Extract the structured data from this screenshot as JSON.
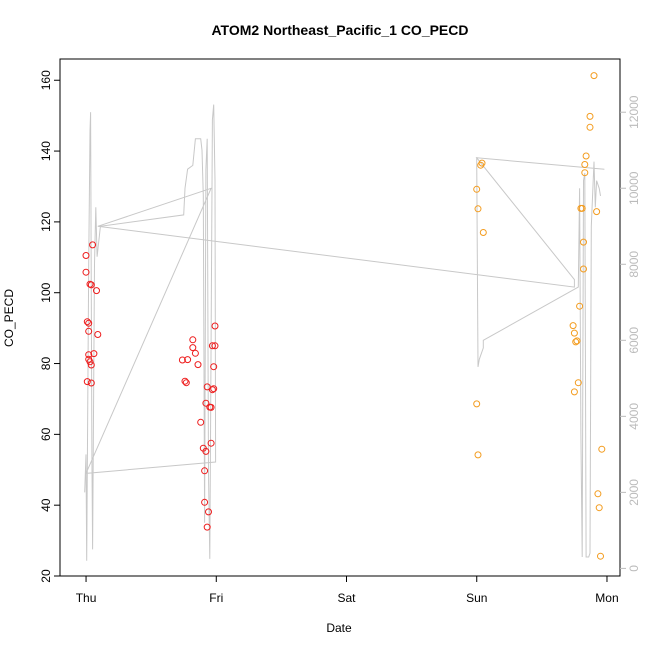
{
  "chart_data": {
    "type": "scatter",
    "title": "ATOM2 Northeast_Pacific_1 CO_PECD",
    "xlabel": "Date",
    "ylabel": "CO_PECD",
    "x_units": "days since start of plotted week (Thu = 0)",
    "xlim": [
      -0.2,
      4.1
    ],
    "ylim": [
      20,
      166
    ],
    "y_ticks": [
      20,
      40,
      60,
      80,
      100,
      120,
      140,
      160
    ],
    "x_ticks": [
      {
        "value": 0,
        "label": "Thu"
      },
      {
        "value": 1,
        "label": "Fri"
      },
      {
        "value": 2,
        "label": "Sat"
      },
      {
        "value": 3,
        "label": "Sun"
      },
      {
        "value": 4,
        "label": "Mon"
      }
    ],
    "y2lim": [
      -200,
      13400
    ],
    "y2_ticks": [
      0,
      2000,
      4000,
      6000,
      8000,
      10000,
      12000
    ],
    "grid": false,
    "legend": "none",
    "colors": {
      "series_red": "#ee1c1c",
      "series_orange": "#f39c1f",
      "secondary_line": "#c8c8c8",
      "right_axis": "#bbbbbb"
    },
    "series": [
      {
        "color": "#ee1c1c",
        "points": [
          [
            0.0,
            110.5
          ],
          [
            0.0,
            105.8
          ],
          [
            0.01,
            91.8
          ],
          [
            0.02,
            91.4
          ],
          [
            0.02,
            89.1
          ],
          [
            0.02,
            82.5
          ],
          [
            0.02,
            81.2
          ],
          [
            0.01,
            74.9
          ],
          [
            0.03,
            80.5
          ],
          [
            0.03,
            102.4
          ],
          [
            0.04,
            102.2
          ],
          [
            0.04,
            79.6
          ],
          [
            0.04,
            74.5
          ],
          [
            0.05,
            113.5
          ],
          [
            0.06,
            82.8
          ],
          [
            0.08,
            100.6
          ],
          [
            0.09,
            88.2
          ],
          [
            0.74,
            81.0
          ],
          [
            0.76,
            75.0
          ],
          [
            0.77,
            74.6
          ],
          [
            0.78,
            81.1
          ],
          [
            0.82,
            86.7
          ],
          [
            0.82,
            84.5
          ],
          [
            0.84,
            82.9
          ],
          [
            0.86,
            79.7
          ],
          [
            0.88,
            63.4
          ],
          [
            0.9,
            56.1
          ],
          [
            0.91,
            49.7
          ],
          [
            0.91,
            40.8
          ],
          [
            0.92,
            68.8
          ],
          [
            0.92,
            55.2
          ],
          [
            0.93,
            73.4
          ],
          [
            0.93,
            33.8
          ],
          [
            0.94,
            38.1
          ],
          [
            0.95,
            67.7
          ],
          [
            0.96,
            57.5
          ],
          [
            0.96,
            67.6
          ],
          [
            0.97,
            72.6
          ],
          [
            0.97,
            85.0
          ],
          [
            0.98,
            79.1
          ],
          [
            0.98,
            72.9
          ],
          [
            0.99,
            90.6
          ],
          [
            0.99,
            85.0
          ]
        ]
      },
      {
        "color": "#f39c1f",
        "points": [
          [
            3.0,
            129.2
          ],
          [
            3.01,
            123.7
          ],
          [
            3.03,
            136.0
          ],
          [
            3.04,
            136.6
          ],
          [
            3.05,
            117.0
          ],
          [
            3.0,
            68.6
          ],
          [
            3.01,
            54.2
          ],
          [
            3.74,
            90.7
          ],
          [
            3.75,
            88.6
          ],
          [
            3.76,
            86.1
          ],
          [
            3.75,
            72.0
          ],
          [
            3.77,
            86.4
          ],
          [
            3.78,
            74.6
          ],
          [
            3.79,
            96.2
          ],
          [
            3.8,
            123.8
          ],
          [
            3.81,
            123.8
          ],
          [
            3.82,
            114.3
          ],
          [
            3.82,
            106.7
          ],
          [
            3.83,
            136.2
          ],
          [
            3.84,
            138.6
          ],
          [
            3.83,
            133.9
          ],
          [
            3.87,
            149.8
          ],
          [
            3.87,
            146.7
          ],
          [
            3.9,
            161.3
          ],
          [
            3.92,
            122.9
          ],
          [
            3.93,
            43.2
          ],
          [
            3.94,
            39.3
          ],
          [
            3.95,
            25.6
          ],
          [
            3.96,
            55.8
          ]
        ]
      }
    ],
    "secondary_series": {
      "axis": "right",
      "color": "#c8c8c8",
      "points": [
        [
          -0.01,
          2000
        ],
        [
          0.0,
          3000
        ],
        [
          0.005,
          200
        ],
        [
          0.02,
          8000
        ],
        [
          0.03,
          11500
        ],
        [
          0.035,
          12000
        ],
        [
          0.045,
          3000
        ],
        [
          0.05,
          500
        ],
        [
          0.065,
          8000
        ],
        [
          0.075,
          9500
        ],
        [
          0.085,
          8200
        ],
        [
          0.11,
          9000
        ],
        [
          0.75,
          9300
        ],
        [
          0.76,
          10000
        ],
        [
          0.78,
          10500
        ],
        [
          0.82,
          10600
        ],
        [
          0.84,
          11300
        ],
        [
          0.88,
          11300
        ],
        [
          0.89,
          11000
        ],
        [
          0.9,
          9800
        ],
        [
          0.91,
          1200
        ],
        [
          0.92,
          10500
        ],
        [
          0.93,
          11300
        ],
        [
          0.94,
          2500
        ],
        [
          0.95,
          250
        ],
        [
          0.97,
          11800
        ],
        [
          0.98,
          12200
        ],
        [
          0.99,
          10200
        ],
        [
          0.995,
          2800
        ],
        [
          0.0,
          2500
        ],
        [
          0.96,
          10000
        ],
        [
          0.09,
          9000
        ],
        [
          3.75,
          7400
        ],
        [
          3.75,
          7600
        ],
        [
          3.0,
          10800
        ],
        [
          3.98,
          10500
        ],
        [
          3.0,
          10800
        ],
        [
          3.01,
          5300
        ],
        [
          3.02,
          5500
        ],
        [
          3.05,
          5800
        ],
        [
          3.05,
          6000
        ],
        [
          3.78,
          7400
        ],
        [
          3.79,
          10000
        ],
        [
          3.8,
          3500
        ],
        [
          3.81,
          300
        ],
        [
          3.82,
          10200
        ],
        [
          3.83,
          10400
        ],
        [
          3.84,
          300
        ],
        [
          3.86,
          300
        ],
        [
          3.87,
          400
        ],
        [
          3.88,
          9000
        ],
        [
          3.9,
          10700
        ],
        [
          3.91,
          9500
        ],
        [
          3.92,
          10200
        ],
        [
          3.94,
          10000
        ],
        [
          3.95,
          9800
        ]
      ]
    }
  }
}
